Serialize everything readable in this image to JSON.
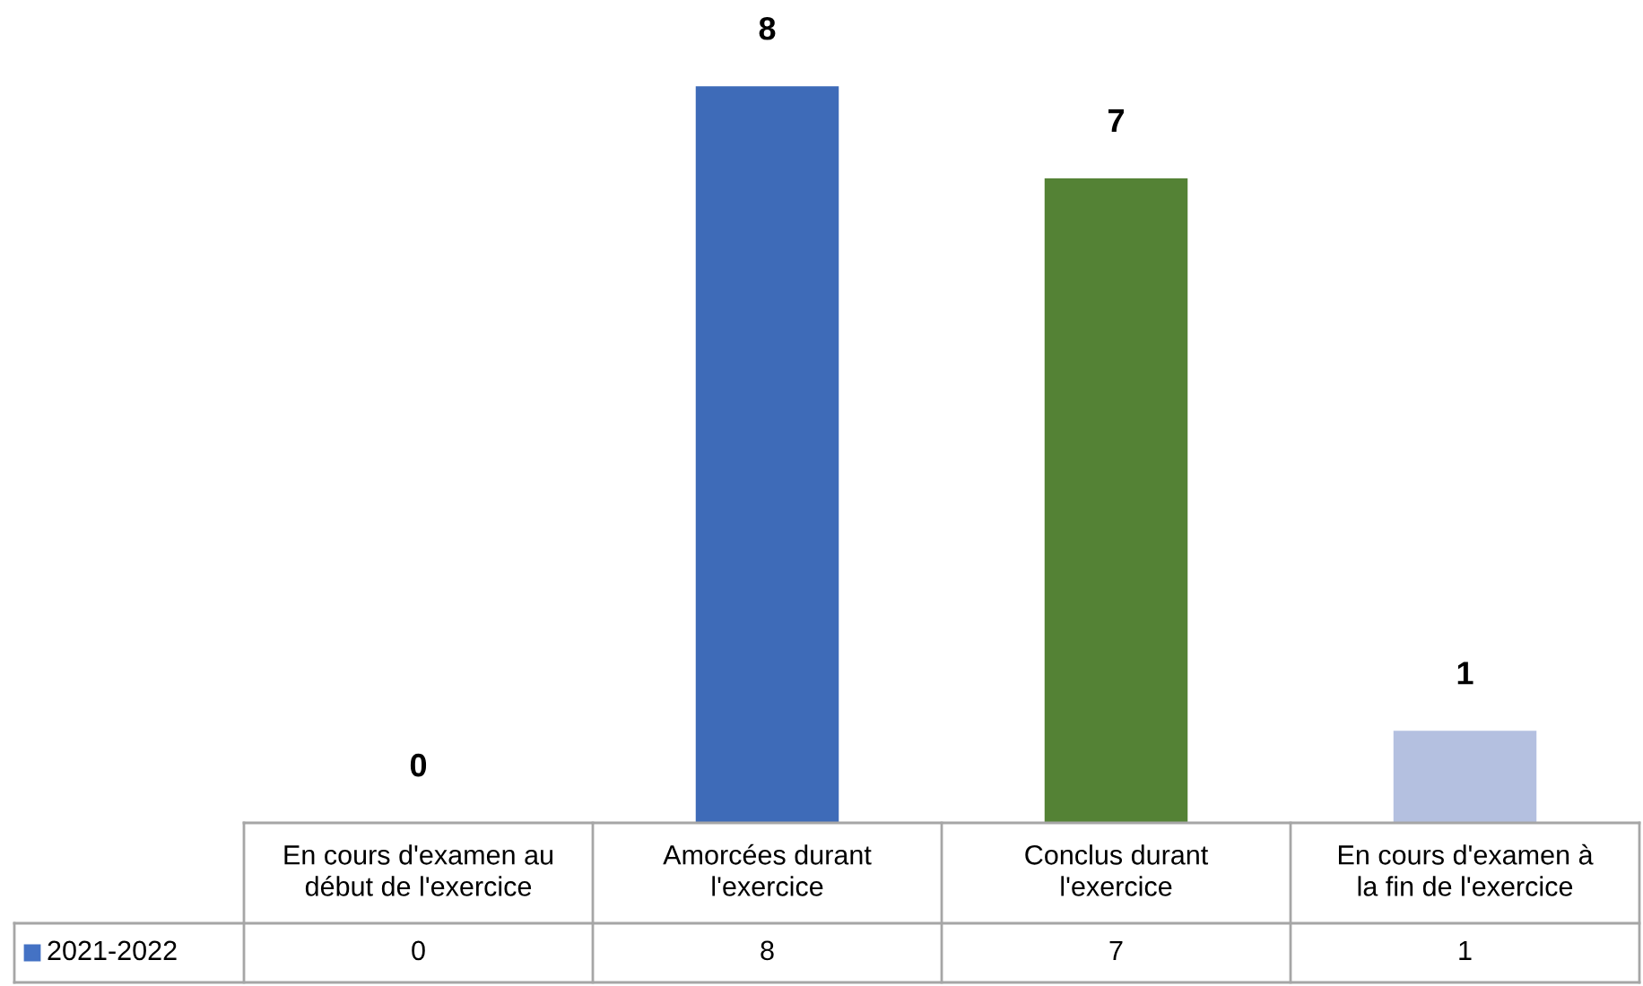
{
  "chart_data": {
    "type": "bar",
    "categories": [
      "En cours d'examen au\ndébut de l'exercice",
      "Amorcées durant\nl'exercice",
      "Conclus durant\nl'exercice",
      "En cours d'examen à\nla fin de l'exercice"
    ],
    "series": [
      {
        "name": "2021-2022",
        "color": "#4472c4",
        "colors": [
          "#4472c4",
          "#3e6bb8",
          "#548235",
          "#b4c0e0"
        ],
        "values": [
          0,
          8,
          7,
          1
        ],
        "value_labels": [
          "0",
          "8",
          "7",
          "1"
        ]
      }
    ],
    "data_labels": true,
    "legend": "bottom"
  }
}
